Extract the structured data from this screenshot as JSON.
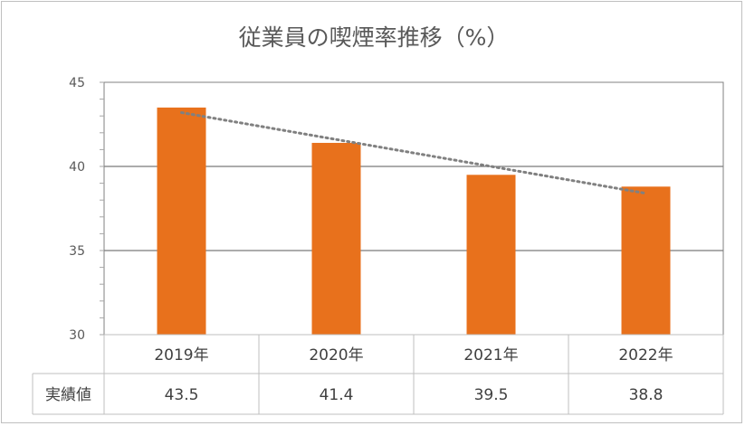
{
  "chart_data": {
    "type": "bar",
    "title": "従業員の喫煙率推移（%）",
    "categories": [
      "2019年",
      "2020年",
      "2021年",
      "2022年"
    ],
    "series": [
      {
        "name": "実績値",
        "values": [
          43.5,
          41.4,
          39.5,
          38.8
        ],
        "color": "#e8711c"
      }
    ],
    "trendline": {
      "type": "linear",
      "style": "dotted",
      "color": "#808080"
    },
    "ylim": [
      30,
      45
    ],
    "yticks": [
      30,
      35,
      40,
      45
    ],
    "grid": true,
    "data_table": true,
    "legend": "none"
  }
}
